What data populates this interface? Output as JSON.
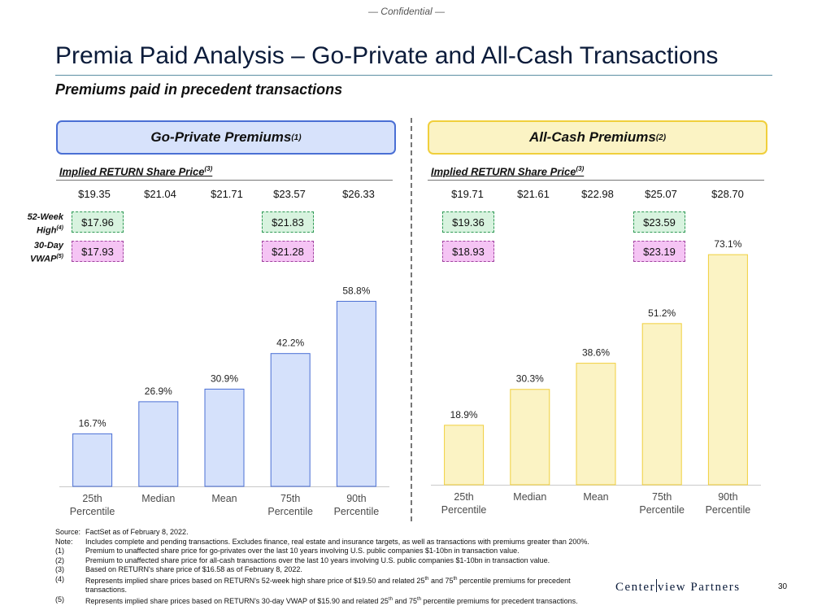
{
  "confidential": "— Confidential —",
  "title": "Premia Paid Analysis – Go-Private and All-Cash Transactions",
  "subtitle": "Premiums paid in precedent transactions",
  "row_labels": {
    "week52_line1": "52-Week",
    "week52_line2": "High",
    "week52_note": "(4)",
    "vwap_line1": "30-Day",
    "vwap_line2": "VWAP",
    "vwap_note": "(5)"
  },
  "left_panel": {
    "header": "Go-Private Premiums",
    "header_note": "(1)",
    "implied_label": "Implied RETURN Share Price",
    "implied_note": "(3)",
    "implied_prices": [
      "$19.35",
      "$21.04",
      "$21.71",
      "$23.57",
      "$26.33"
    ],
    "week52_boxes": [
      "$17.96",
      "$21.83"
    ],
    "vwap_boxes": [
      "$17.93",
      "$21.28"
    ]
  },
  "right_panel": {
    "header": "All-Cash Premiums",
    "header_note": "(2)",
    "implied_label": "Implied RETURN Share Price",
    "implied_note": "(3)",
    "implied_prices": [
      "$19.71",
      "$21.61",
      "$22.98",
      "$25.07",
      "$28.70"
    ],
    "week52_boxes": [
      "$19.36",
      "$23.59"
    ],
    "vwap_boxes": [
      "$18.93",
      "$23.19"
    ]
  },
  "chart_data": [
    {
      "type": "bar",
      "title": "Go-Private Premiums",
      "categories": [
        [
          "25th",
          "Percentile"
        ],
        [
          "Median"
        ],
        [
          "Mean"
        ],
        [
          "75th",
          "Percentile"
        ],
        [
          "90th",
          "Percentile"
        ]
      ],
      "values": [
        16.7,
        26.9,
        30.9,
        42.2,
        58.8
      ],
      "value_labels": [
        "16.7%",
        "26.9%",
        "30.9%",
        "42.2%",
        "58.8%"
      ],
      "ylim": [
        0,
        80
      ],
      "fill": "#d5e1fb",
      "stroke": "#4a6fd4"
    },
    {
      "type": "bar",
      "title": "All-Cash Premiums",
      "categories": [
        [
          "25th",
          "Percentile"
        ],
        [
          "Median"
        ],
        [
          "Mean"
        ],
        [
          "75th",
          "Percentile"
        ],
        [
          "90th",
          "Percentile"
        ]
      ],
      "values": [
        18.9,
        30.3,
        38.6,
        51.2,
        73.1
      ],
      "value_labels": [
        "18.9%",
        "30.3%",
        "38.6%",
        "51.2%",
        "73.1%"
      ],
      "ylim": [
        0,
        80
      ],
      "fill": "#fbf3c4",
      "stroke": "#f0cf3c"
    }
  ],
  "footnotes": [
    {
      "key": "Source:",
      "text": "FactSet as of February 8, 2022."
    },
    {
      "key": "Note:",
      "text": "Includes complete and pending transactions. Excludes finance, real estate and insurance targets, as well as transactions with premiums greater than 200%."
    },
    {
      "key": "(1)",
      "text": "Premium to unaffected share price for go-privates over the last 10 years involving U.S. public companies $1-10bn in transaction value."
    },
    {
      "key": "(2)",
      "text": "Premium to unaffected share price for all-cash transactions over the last 10 years involving U.S. public companies $1-10bn in transaction value."
    },
    {
      "key": "(3)",
      "text": "Based on RETURN's share price of $16.58 as of February 8, 2022."
    },
    {
      "key": "(4)",
      "text": "Represents implied share prices based on RETURN's 52-week high share price of $19.50 and related 25th and 75th percentile premiums for precedent transactions."
    },
    {
      "key": "(5)",
      "text": "Represents implied share prices based on RETURN's 30-day VWAP of $15.90 and related 25th and 75th percentile premiums for precedent transactions."
    }
  ],
  "logo_left": "Center",
  "logo_right": "view Partners",
  "page_number": "30"
}
